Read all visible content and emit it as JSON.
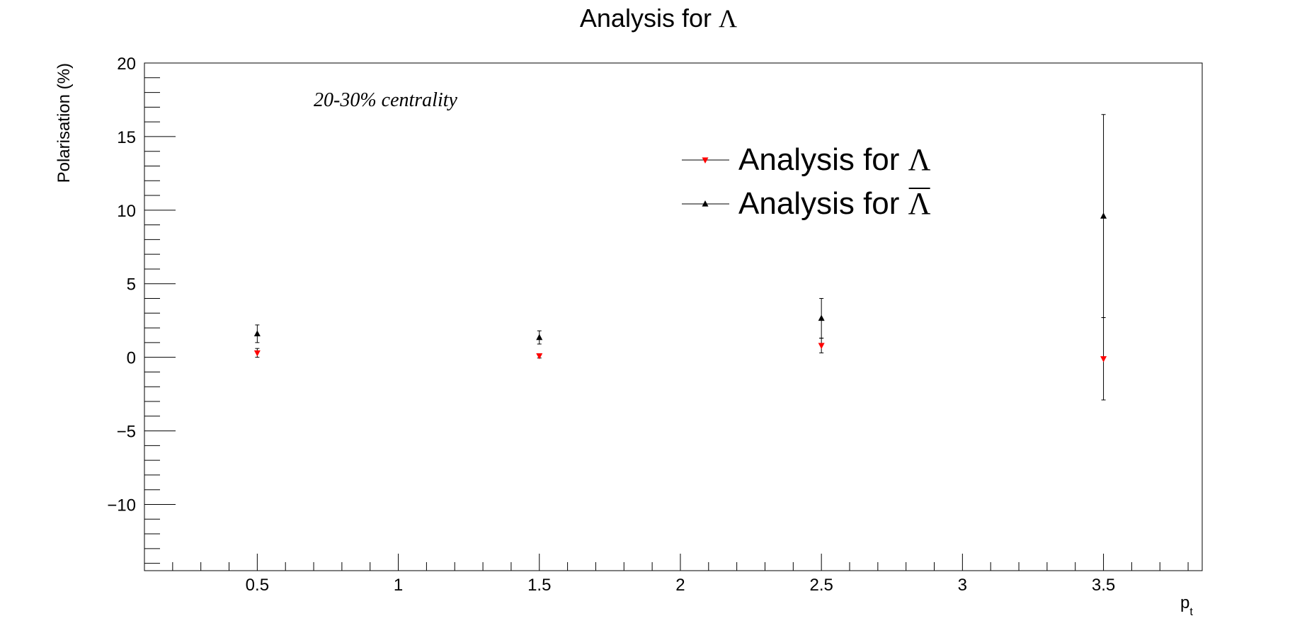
{
  "chart_data": {
    "type": "scatter",
    "title": "Analysis for",
    "title_symbol": "Λ",
    "xlabel": "p",
    "xlabel_subscript": "t",
    "ylabel": "Polarisation (%)",
    "annotation": "20-30% centrality",
    "xlim": [
      0.1,
      3.85
    ],
    "ylim": [
      -14.5,
      20
    ],
    "x_ticks": [
      0.5,
      1,
      1.5,
      2,
      2.5,
      3,
      3.5
    ],
    "x_tick_labels": [
      "0.5",
      "1",
      "1.5",
      "2",
      "2.5",
      "3",
      "3.5"
    ],
    "y_ticks": [
      -10,
      -5,
      0,
      5,
      10,
      15,
      20
    ],
    "y_tick_labels": [
      "−10",
      "−5",
      "0",
      "5",
      "10",
      "15",
      "20"
    ],
    "grid": false,
    "legend_position": "upper-center-right",
    "series": [
      {
        "name": "Analysis for",
        "symbol": "Λ",
        "overline": false,
        "color": "#ff0000",
        "marker": "triangle-down",
        "x": [
          0.5,
          1.5,
          2.5,
          3.5
        ],
        "y": [
          0.3,
          0.1,
          0.8,
          -0.1
        ],
        "yerr": [
          0.3,
          0.15,
          0.5,
          2.8
        ]
      },
      {
        "name": "Analysis for",
        "symbol": "Λ",
        "overline": true,
        "color": "#000000",
        "marker": "triangle-up",
        "x": [
          0.5,
          1.5,
          2.5,
          3.5
        ],
        "y": [
          1.6,
          1.35,
          2.65,
          9.6
        ],
        "yerr": [
          0.6,
          0.45,
          1.35,
          6.9
        ]
      }
    ]
  }
}
